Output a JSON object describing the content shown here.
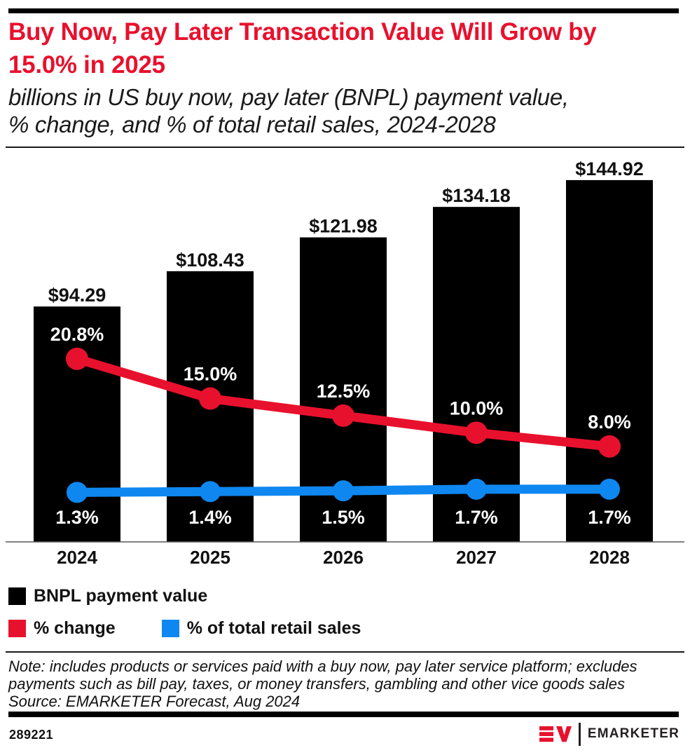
{
  "header": {
    "title_lines": [
      "Buy Now, Pay Later Transaction Value Will Grow by",
      "15.0% in 2025"
    ],
    "subtitle_lines": [
      "billions in US buy now, pay later (BNPL) payment value,",
      "% change, and % of total retail sales, 2024-2028"
    ]
  },
  "chart_data": {
    "type": "bar",
    "subtype": "bar-with-two-lines",
    "categories": [
      "2024",
      "2025",
      "2026",
      "2027",
      "2028"
    ],
    "series": [
      {
        "name": "BNPL payment value",
        "type": "bar",
        "unit": "US$ billions",
        "color": "#000000",
        "values": [
          94.29,
          108.43,
          121.98,
          134.18,
          144.92
        ],
        "labels": [
          "$94.29",
          "$108.43",
          "$121.98",
          "$134.18",
          "$144.92"
        ]
      },
      {
        "name": "% change",
        "type": "line",
        "color": "#e8112d",
        "values": [
          20.8,
          15.0,
          12.5,
          10.0,
          8.0
        ],
        "labels": [
          "20.8%",
          "15.0%",
          "12.5%",
          "10.0%",
          "8.0%"
        ]
      },
      {
        "name": "% of total retail sales",
        "type": "line",
        "color": "#0f87f0",
        "values": [
          1.3,
          1.4,
          1.5,
          1.7,
          1.7
        ],
        "labels": [
          "1.3%",
          "1.4%",
          "1.5%",
          "1.7%",
          "1.7%"
        ]
      }
    ],
    "title": "Buy Now, Pay Later Transaction Value Will Grow by 15.0% in 2025",
    "xlabel": "",
    "ylabel": "",
    "value_axis_visible": false,
    "grid": false,
    "legend_position": "bottom-left",
    "bar_value_label_color": "#111111",
    "line_value_label_color": "#ffffff"
  },
  "footnote": {
    "note_lines": [
      "Note: includes products or services paid with a buy now, pay later service platform; excludes",
      "payments such as bill pay, taxes, or money transfers, gambling and other vice goods sales"
    ],
    "source": "Source: EMARKETER Forecast, Aug 2024"
  },
  "footer": {
    "chart_id": "289221",
    "brand_monogram": "EM",
    "brand_wordmark": "EMARKETER",
    "brand_red": "#e8112d",
    "brand_black": "#231f20"
  }
}
